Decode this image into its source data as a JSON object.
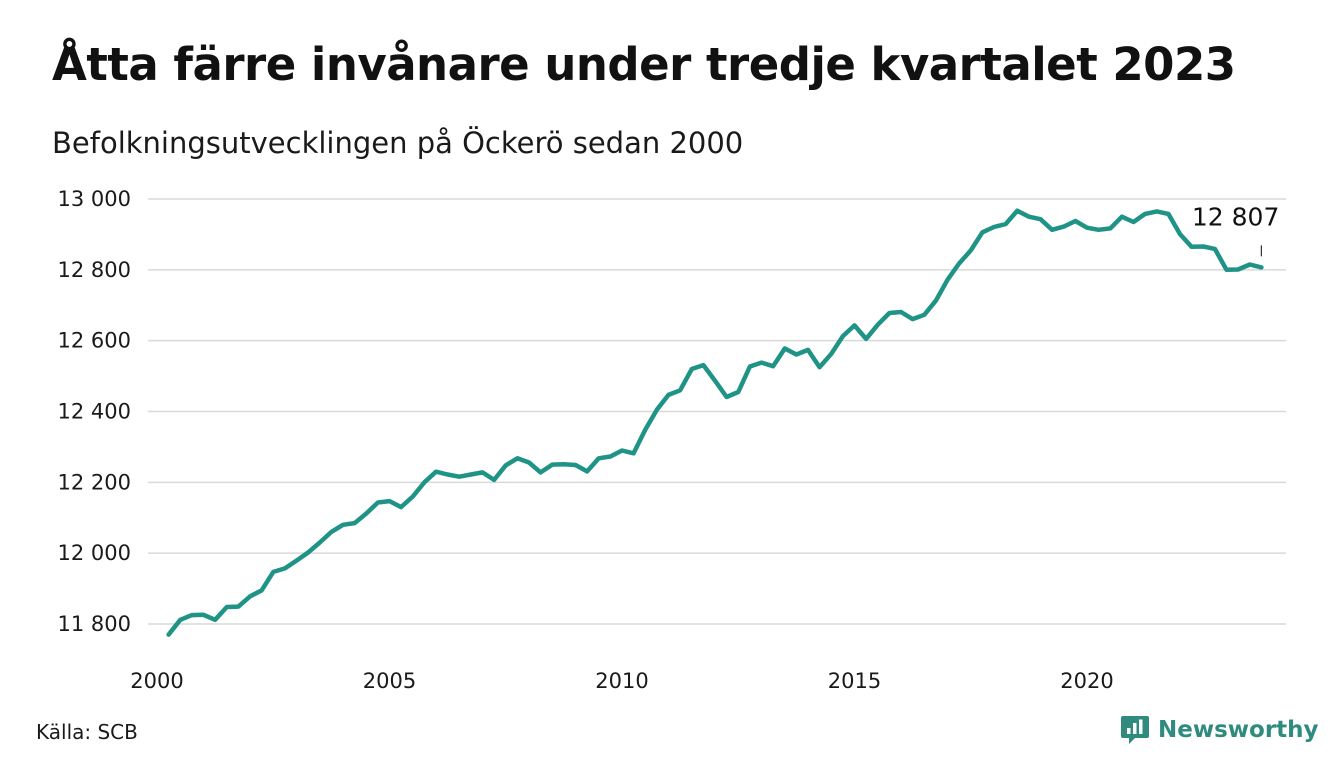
{
  "header": {
    "title": "Åtta färre invånare under tredje kvartalet 2023",
    "subtitle": "Befolkningsutvecklingen på Öckerö sedan 2000"
  },
  "footer": {
    "source": "Källa: SCB",
    "brand": "Newsworthy"
  },
  "colors": {
    "line": "#1f9486",
    "grid": "#d9d9d9",
    "brand": "#2e8b7e"
  },
  "chart_data": {
    "type": "line",
    "title": "Åtta färre invånare under tredje kvartalet 2023",
    "subtitle": "Befolkningsutvecklingen på Öckerö sedan 2000",
    "xlabel": "",
    "ylabel": "",
    "xlim": [
      2000,
      2024
    ],
    "ylim": [
      11760,
      13010
    ],
    "x_ticks": [
      2000,
      2005,
      2010,
      2015,
      2020
    ],
    "x_tick_labels": [
      "2000",
      "2005",
      "2010",
      "2015",
      "2020"
    ],
    "y_ticks": [
      11800,
      12000,
      12200,
      12400,
      12600,
      12800,
      13000
    ],
    "y_tick_labels": [
      "11 800",
      "12 000",
      "12 200",
      "12 400",
      "12 600",
      "12 800",
      "13 000"
    ],
    "grid": true,
    "legend": "none",
    "end_label": "12 807",
    "series": [
      {
        "x": [
          2000.25,
          2000.5,
          2000.75,
          2001,
          2001.25,
          2001.5,
          2001.75,
          2002,
          2002.25,
          2002.5,
          2002.75,
          2003,
          2003.25,
          2003.5,
          2003.75,
          2004,
          2004.25,
          2004.5,
          2004.75,
          2005,
          2005.25,
          2005.5,
          2005.75,
          2006,
          2006.25,
          2006.5,
          2006.75,
          2007,
          2007.25,
          2007.5,
          2007.75,
          2008,
          2008.25,
          2008.5,
          2008.75,
          2009,
          2009.25,
          2009.5,
          2009.75,
          2010,
          2010.25,
          2010.5,
          2010.75,
          2011,
          2011.25,
          2011.5,
          2011.75,
          2012,
          2012.25,
          2012.5,
          2012.75,
          2013,
          2013.25,
          2013.5,
          2013.75,
          2014,
          2014.25,
          2014.5,
          2014.75,
          2015,
          2015.25,
          2015.5,
          2015.75,
          2016,
          2016.25,
          2016.5,
          2016.75,
          2017,
          2017.25,
          2017.5,
          2017.75,
          2018,
          2018.25,
          2018.5,
          2018.75,
          2019,
          2019.25,
          2019.5,
          2019.75,
          2020,
          2020.25,
          2020.5,
          2020.75,
          2021,
          2021.25,
          2021.5,
          2021.75,
          2022,
          2022.25,
          2022.5,
          2022.75,
          2023,
          2023.25,
          2023.5,
          2023.75
        ],
        "values": [
          11770,
          11812,
          11825,
          11826,
          11812,
          11848,
          11849,
          11878,
          11895,
          11947,
          11957,
          11979,
          12002,
          12030,
          12060,
          12080,
          12085,
          12112,
          12143,
          12147,
          12130,
          12160,
          12200,
          12230,
          12222,
          12216,
          12222,
          12228,
          12207,
          12248,
          12268,
          12256,
          12228,
          12250,
          12251,
          12249,
          12231,
          12268,
          12273,
          12290,
          12282,
          12349,
          12405,
          12447,
          12460,
          12520,
          12531,
          12487,
          12441,
          12455,
          12527,
          12538,
          12528,
          12578,
          12561,
          12574,
          12525,
          12563,
          12613,
          12643,
          12605,
          12645,
          12678,
          12681,
          12661,
          12673,
          12713,
          12772,
          12818,
          12855,
          12906,
          12921,
          12929,
          12967,
          12950,
          12943,
          12913,
          12922,
          12938,
          12919,
          12913,
          12917,
          12950,
          12935,
          12958,
          12965,
          12958,
          12901,
          12865,
          12866,
          12859,
          12800,
          12801,
          12815,
          12807
        ]
      }
    ]
  }
}
